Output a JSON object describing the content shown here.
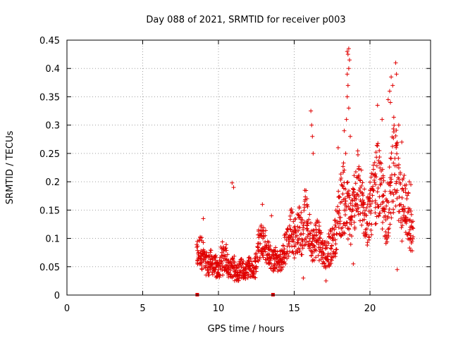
{
  "chart_data": {
    "type": "scatter",
    "title": "Day 088 of 2021, SRMTID for receiver p003",
    "xlabel": "GPS time / hours",
    "ylabel": "SRMTID / TECUs",
    "xlim": [
      0,
      24
    ],
    "ylim": [
      0,
      0.45
    ],
    "xticks": [
      0,
      5,
      10,
      15,
      20
    ],
    "xtick_labels": [
      "0",
      "5",
      "10",
      "15",
      "20"
    ],
    "yticks": [
      0,
      0.05,
      0.1,
      0.15,
      0.2,
      0.25,
      0.3,
      0.35,
      0.4,
      0.45
    ],
    "ytick_labels": [
      "0",
      "0.05",
      "0.1",
      "0.15",
      "0.2",
      "0.25",
      "0.3",
      "0.35",
      "0.4",
      "0.45"
    ],
    "grid": true,
    "marker": "+",
    "color": "#e00000",
    "gap_markers_x": [
      8.6,
      13.6
    ],
    "series": [
      {
        "name": "SRMTID",
        "x": [
          8.6,
          8.7,
          8.8,
          8.9,
          9.0,
          9.1,
          9.2,
          9.3,
          9.4,
          9.5,
          9.6,
          9.7,
          9.8,
          9.9,
          10.0,
          10.1,
          10.2,
          10.3,
          10.4,
          10.5,
          10.6,
          10.7,
          10.8,
          10.9,
          11.0,
          11.1,
          11.2,
          11.3,
          11.4,
          11.5,
          11.6,
          11.7,
          11.8,
          11.9,
          12.0,
          12.1,
          12.2,
          12.3,
          12.4,
          12.5,
          12.6,
          12.7,
          12.8,
          12.9,
          13.0,
          13.1,
          13.2,
          13.3,
          13.4,
          13.5,
          13.6,
          13.7,
          13.8,
          13.9,
          14.0,
          14.1,
          14.2,
          14.3,
          14.4,
          14.5,
          14.6,
          14.7,
          14.8,
          14.9,
          15.0,
          15.1,
          15.2,
          15.3,
          15.4,
          15.5,
          15.6,
          15.7,
          15.8,
          15.9,
          16.0,
          16.1,
          16.2,
          16.3,
          16.4,
          16.5,
          16.6,
          16.7,
          16.8,
          16.9,
          17.0,
          17.1,
          17.2,
          17.3,
          17.4,
          17.5,
          17.6,
          17.7,
          17.8,
          17.9,
          18.0,
          18.1,
          18.2,
          18.3,
          18.4,
          18.5,
          18.6,
          18.7,
          18.8,
          18.9,
          19.0,
          19.1,
          19.2,
          19.3,
          19.4,
          19.5,
          19.6,
          19.7,
          19.8,
          19.9,
          20.0,
          20.1,
          20.2,
          20.3,
          20.4,
          20.5,
          20.6,
          20.7,
          20.8,
          20.9,
          21.0,
          21.1,
          21.2,
          21.3,
          21.4,
          21.5,
          21.6,
          21.7,
          21.8,
          21.9,
          22.0,
          22.1,
          22.2,
          22.3,
          22.4,
          22.5,
          22.6,
          22.7,
          22.8
        ],
        "mid": [
          0.07,
          0.075,
          0.08,
          0.075,
          0.07,
          0.06,
          0.055,
          0.05,
          0.055,
          0.06,
          0.055,
          0.05,
          0.05,
          0.045,
          0.045,
          0.05,
          0.06,
          0.065,
          0.07,
          0.065,
          0.055,
          0.05,
          0.045,
          0.05,
          0.05,
          0.045,
          0.04,
          0.04,
          0.045,
          0.05,
          0.045,
          0.04,
          0.04,
          0.045,
          0.05,
          0.05,
          0.045,
          0.045,
          0.05,
          0.06,
          0.08,
          0.09,
          0.1,
          0.1,
          0.095,
          0.09,
          0.08,
          0.075,
          0.07,
          0.065,
          0.06,
          0.06,
          0.065,
          0.06,
          0.055,
          0.06,
          0.065,
          0.07,
          0.08,
          0.09,
          0.1,
          0.11,
          0.12,
          0.11,
          0.1,
          0.105,
          0.11,
          0.12,
          0.115,
          0.11,
          0.12,
          0.13,
          0.135,
          0.12,
          0.11,
          0.1,
          0.09,
          0.09,
          0.1,
          0.11,
          0.1,
          0.09,
          0.085,
          0.08,
          0.075,
          0.07,
          0.075,
          0.08,
          0.085,
          0.09,
          0.09,
          0.1,
          0.12,
          0.14,
          0.15,
          0.16,
          0.17,
          0.17,
          0.16,
          0.15,
          0.14,
          0.13,
          0.14,
          0.15,
          0.17,
          0.18,
          0.19,
          0.18,
          0.17,
          0.16,
          0.15,
          0.14,
          0.13,
          0.14,
          0.15,
          0.16,
          0.17,
          0.18,
          0.19,
          0.2,
          0.19,
          0.18,
          0.17,
          0.16,
          0.15,
          0.14,
          0.15,
          0.17,
          0.2,
          0.22,
          0.24,
          0.22,
          0.2,
          0.18,
          0.16,
          0.15,
          0.16,
          0.18,
          0.16,
          0.14,
          0.12,
          0.11,
          0.1,
          0.095,
          0.1
        ],
        "spread": [
          0.025,
          0.03,
          0.03,
          0.03,
          0.025,
          0.02,
          0.02,
          0.02,
          0.02,
          0.02,
          0.02,
          0.02,
          0.02,
          0.015,
          0.015,
          0.02,
          0.025,
          0.03,
          0.03,
          0.025,
          0.02,
          0.02,
          0.015,
          0.02,
          0.02,
          0.02,
          0.015,
          0.015,
          0.015,
          0.02,
          0.015,
          0.015,
          0.015,
          0.015,
          0.02,
          0.02,
          0.015,
          0.015,
          0.02,
          0.02,
          0.03,
          0.03,
          0.03,
          0.03,
          0.03,
          0.03,
          0.025,
          0.02,
          0.02,
          0.02,
          0.02,
          0.02,
          0.02,
          0.02,
          0.02,
          0.02,
          0.02,
          0.025,
          0.03,
          0.03,
          0.035,
          0.04,
          0.04,
          0.04,
          0.035,
          0.035,
          0.035,
          0.04,
          0.04,
          0.04,
          0.04,
          0.045,
          0.05,
          0.04,
          0.035,
          0.035,
          0.03,
          0.03,
          0.035,
          0.035,
          0.035,
          0.03,
          0.03,
          0.025,
          0.025,
          0.025,
          0.025,
          0.03,
          0.03,
          0.03,
          0.03,
          0.035,
          0.04,
          0.05,
          0.055,
          0.06,
          0.065,
          0.065,
          0.06,
          0.055,
          0.05,
          0.045,
          0.045,
          0.05,
          0.055,
          0.06,
          0.065,
          0.06,
          0.055,
          0.05,
          0.05,
          0.045,
          0.045,
          0.045,
          0.05,
          0.055,
          0.06,
          0.06,
          0.065,
          0.07,
          0.065,
          0.06,
          0.06,
          0.055,
          0.05,
          0.05,
          0.05,
          0.06,
          0.07,
          0.075,
          0.08,
          0.075,
          0.07,
          0.065,
          0.06,
          0.055,
          0.06,
          0.065,
          0.06,
          0.05,
          0.045,
          0.04,
          0.035,
          0.03,
          0.03
        ]
      }
    ],
    "outliers": [
      {
        "x": 9.0,
        "y": 0.135
      },
      {
        "x": 10.9,
        "y": 0.198
      },
      {
        "x": 11.0,
        "y": 0.19
      },
      {
        "x": 12.9,
        "y": 0.16
      },
      {
        "x": 13.5,
        "y": 0.14
      },
      {
        "x": 15.7,
        "y": 0.185
      },
      {
        "x": 16.1,
        "y": 0.325
      },
      {
        "x": 16.15,
        "y": 0.3
      },
      {
        "x": 16.2,
        "y": 0.28
      },
      {
        "x": 16.25,
        "y": 0.25
      },
      {
        "x": 15.6,
        "y": 0.03
      },
      {
        "x": 17.1,
        "y": 0.025
      },
      {
        "x": 17.9,
        "y": 0.26
      },
      {
        "x": 18.3,
        "y": 0.29
      },
      {
        "x": 18.5,
        "y": 0.43
      },
      {
        "x": 18.55,
        "y": 0.425
      },
      {
        "x": 18.6,
        "y": 0.435
      },
      {
        "x": 18.65,
        "y": 0.415
      },
      {
        "x": 18.6,
        "y": 0.4
      },
      {
        "x": 18.5,
        "y": 0.39
      },
      {
        "x": 18.55,
        "y": 0.37
      },
      {
        "x": 18.5,
        "y": 0.35
      },
      {
        "x": 18.6,
        "y": 0.33
      },
      {
        "x": 18.45,
        "y": 0.31
      },
      {
        "x": 18.7,
        "y": 0.28
      },
      {
        "x": 18.4,
        "y": 0.25
      },
      {
        "x": 18.9,
        "y": 0.055
      },
      {
        "x": 20.5,
        "y": 0.335
      },
      {
        "x": 20.8,
        "y": 0.31
      },
      {
        "x": 21.2,
        "y": 0.345
      },
      {
        "x": 21.3,
        "y": 0.36
      },
      {
        "x": 21.4,
        "y": 0.385
      },
      {
        "x": 21.5,
        "y": 0.37
      },
      {
        "x": 21.35,
        "y": 0.34
      },
      {
        "x": 21.7,
        "y": 0.41
      },
      {
        "x": 21.75,
        "y": 0.39
      },
      {
        "x": 21.9,
        "y": 0.3
      },
      {
        "x": 22.1,
        "y": 0.27
      },
      {
        "x": 21.8,
        "y": 0.045
      },
      {
        "x": 22.6,
        "y": 0.2
      },
      {
        "x": 22.7,
        "y": 0.195
      }
    ]
  }
}
